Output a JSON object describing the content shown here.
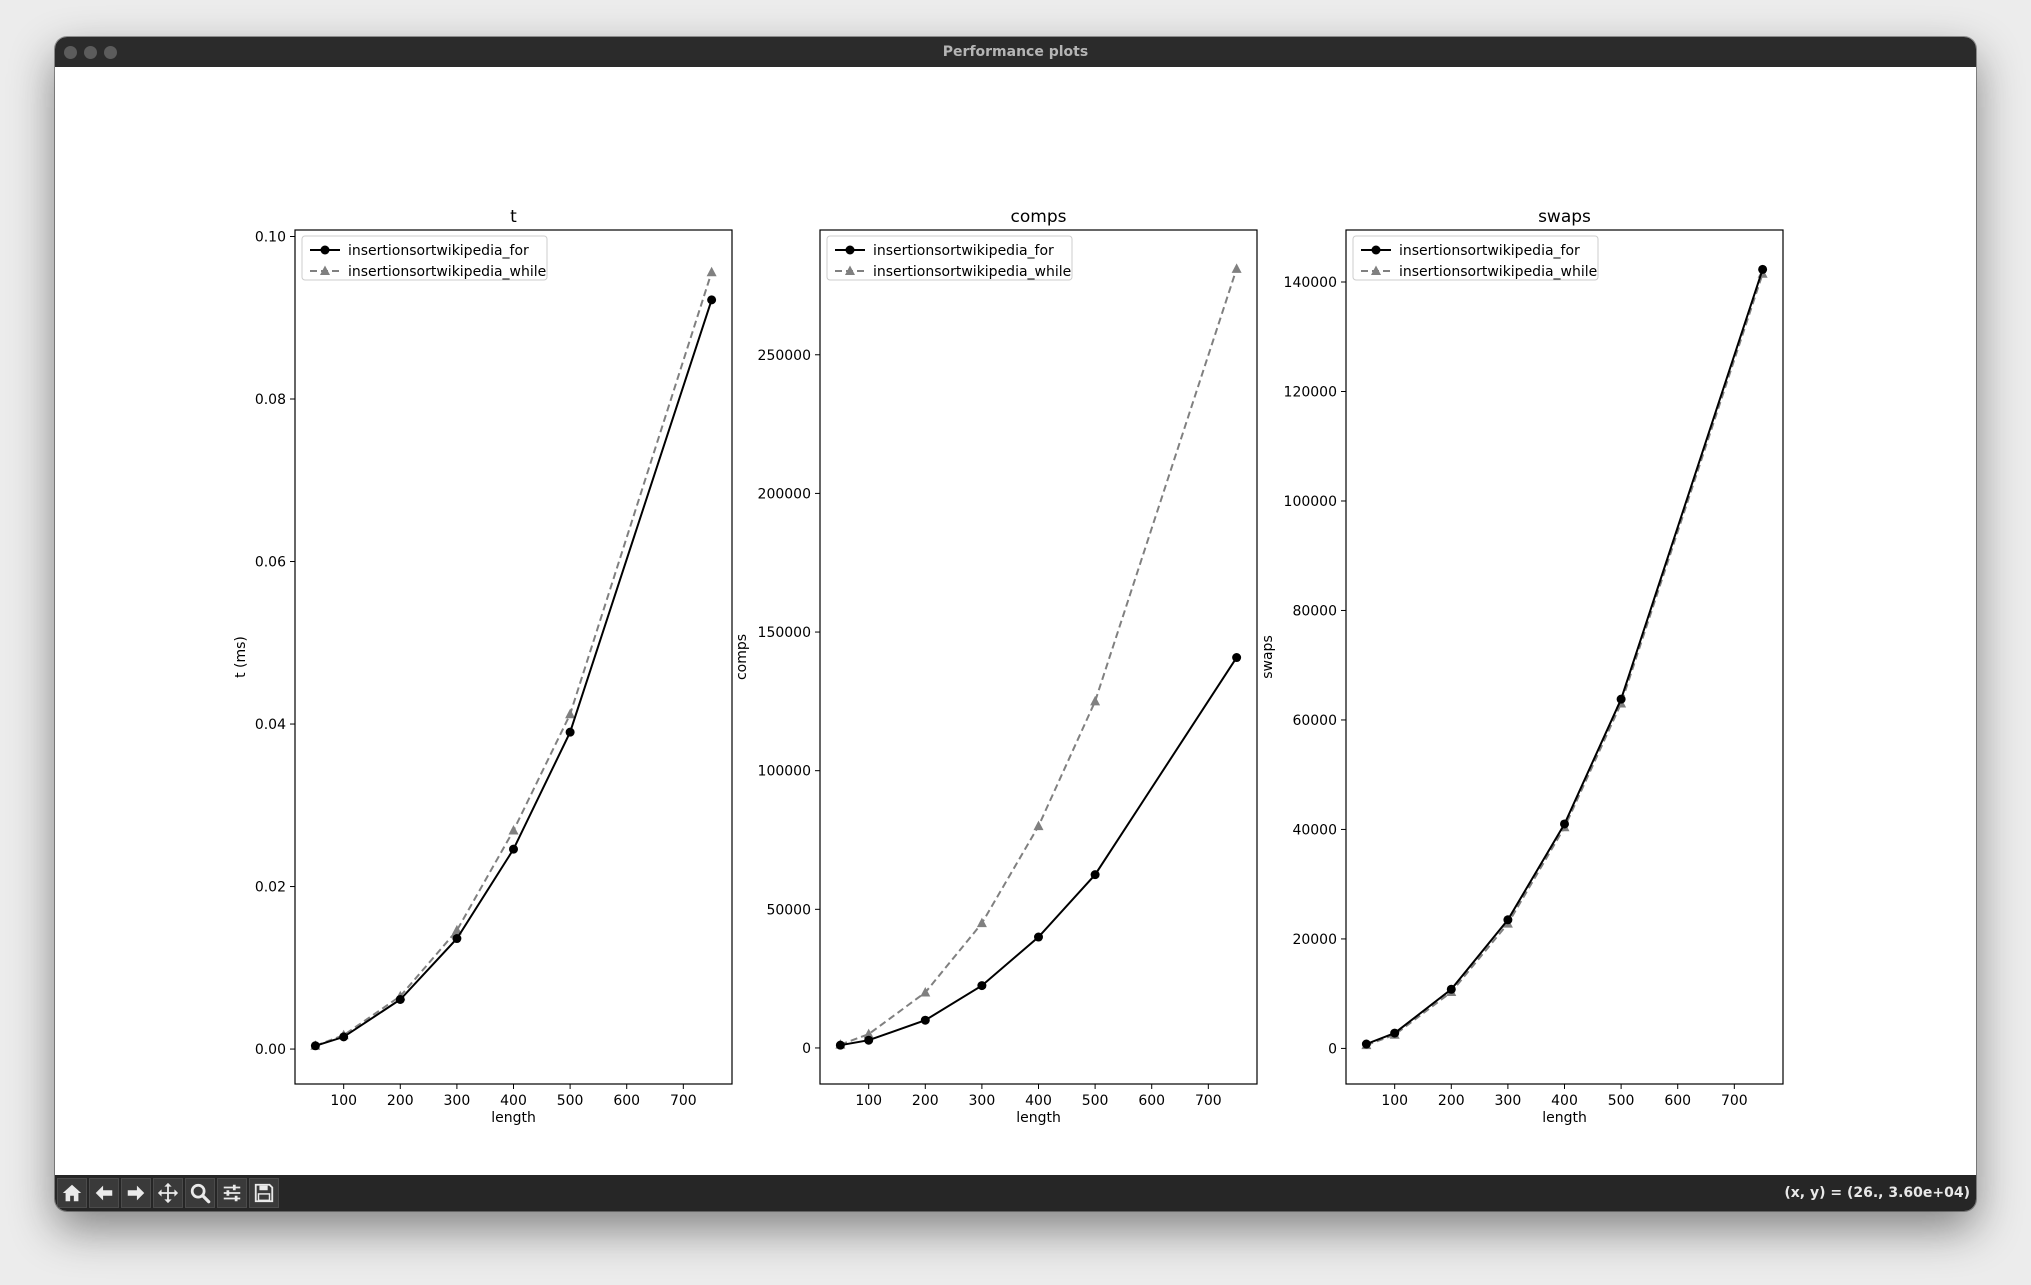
{
  "window": {
    "title": "Performance plots"
  },
  "toolbar": {
    "buttons": [
      {
        "name": "home-button",
        "icon": "home-icon"
      },
      {
        "name": "back-button",
        "icon": "arrow-left-icon"
      },
      {
        "name": "forward-button",
        "icon": "arrow-right-icon"
      },
      {
        "name": "pan-button",
        "icon": "move-icon"
      },
      {
        "name": "zoom-button",
        "icon": "zoom-icon"
      },
      {
        "name": "configure-subplots-button",
        "icon": "sliders-icon"
      },
      {
        "name": "save-button",
        "icon": "save-icon"
      }
    ],
    "coords": "(x, y) = (26., 3.60e+04)"
  },
  "colors": {
    "series_for": "#000000",
    "series_while": "#808080"
  },
  "chart_data": [
    {
      "type": "line",
      "title": "t",
      "xlabel": "length",
      "ylabel": "t (ms)",
      "x": [
        50,
        100,
        200,
        300,
        400,
        500,
        750
      ],
      "xlim": [
        14,
        786
      ],
      "ylim": [
        -0.0043,
        0.1008
      ],
      "xticks": [
        100,
        200,
        300,
        400,
        500,
        600,
        700
      ],
      "xticklabels": [
        "100",
        "200",
        "300",
        "400",
        "500",
        "600",
        "700"
      ],
      "yticks": [
        0.0,
        0.02,
        0.04,
        0.06,
        0.08,
        0.1
      ],
      "yticklabels": [
        "0.00",
        "0.02",
        "0.04",
        "0.06",
        "0.08",
        "0.10"
      ],
      "legend": "upper left",
      "series": [
        {
          "name": "insertionsortwikipedia_for",
          "values": [
            0.0004,
            0.0015,
            0.0061,
            0.0136,
            0.0246,
            0.039,
            0.0922
          ]
        },
        {
          "name": "insertionsortwikipedia_while",
          "values": [
            0.0004,
            0.0017,
            0.0065,
            0.0146,
            0.0269,
            0.0412,
            0.0956
          ]
        }
      ]
    },
    {
      "type": "line",
      "title": "comps",
      "xlabel": "length",
      "ylabel": "comps",
      "x": [
        50,
        100,
        200,
        300,
        400,
        500,
        750
      ],
      "xlim": [
        14,
        786
      ],
      "ylim": [
        -13000,
        295000
      ],
      "xticks": [
        100,
        200,
        300,
        400,
        500,
        600,
        700
      ],
      "xticklabels": [
        "100",
        "200",
        "300",
        "400",
        "500",
        "600",
        "700"
      ],
      "yticks": [
        0,
        50000,
        100000,
        150000,
        200000,
        250000
      ],
      "yticklabels": [
        "0",
        "50000",
        "100000",
        "150000",
        "200000",
        "250000"
      ],
      "legend": "upper left",
      "series": [
        {
          "name": "insertionsortwikipedia_for",
          "values": [
            1000,
            2800,
            10000,
            22500,
            40000,
            62500,
            140800
          ]
        },
        {
          "name": "insertionsortwikipedia_while",
          "values": [
            1200,
            5000,
            20000,
            45000,
            80000,
            125000,
            281000
          ]
        }
      ]
    },
    {
      "type": "line",
      "title": "swaps",
      "xlabel": "length",
      "ylabel": "swaps",
      "x": [
        50,
        100,
        200,
        300,
        400,
        500,
        750
      ],
      "xlim": [
        14,
        786
      ],
      "ylim": [
        -6500,
        149500
      ],
      "xticks": [
        100,
        200,
        300,
        400,
        500,
        600,
        700
      ],
      "xticklabels": [
        "100",
        "200",
        "300",
        "400",
        "500",
        "600",
        "700"
      ],
      "yticks": [
        0,
        20000,
        40000,
        60000,
        80000,
        100000,
        120000,
        140000
      ],
      "yticklabels": [
        "0",
        "20000",
        "40000",
        "60000",
        "80000",
        "100000",
        "120000",
        "140000"
      ],
      "legend": "upper left",
      "series": [
        {
          "name": "insertionsortwikipedia_for",
          "values": [
            800,
            2800,
            10800,
            23500,
            41000,
            63800,
            142300
          ]
        },
        {
          "name": "insertionsortwikipedia_while",
          "values": [
            600,
            2500,
            10300,
            22800,
            40400,
            63000,
            141500
          ]
        }
      ]
    }
  ]
}
